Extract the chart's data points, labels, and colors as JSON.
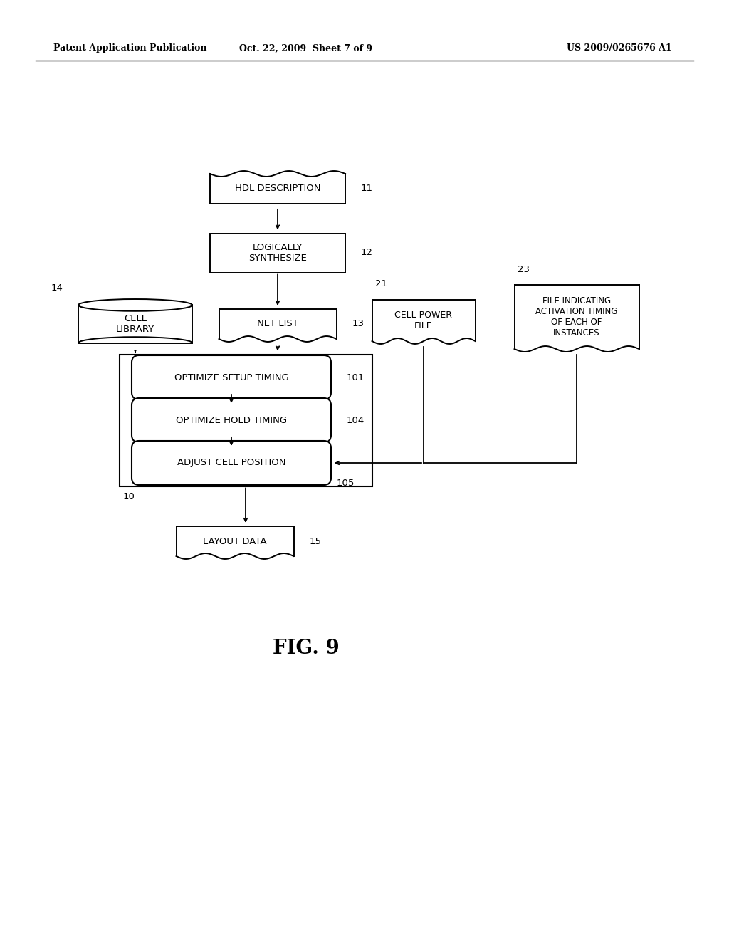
{
  "bg_color": "#ffffff",
  "header_left": "Patent Application Publication",
  "header_mid": "Oct. 22, 2009  Sheet 7 of 9",
  "header_right": "US 2009/0265676 A1",
  "fig_label": "FIG. 9",
  "line_color": "#000000",
  "text_color": "#000000"
}
